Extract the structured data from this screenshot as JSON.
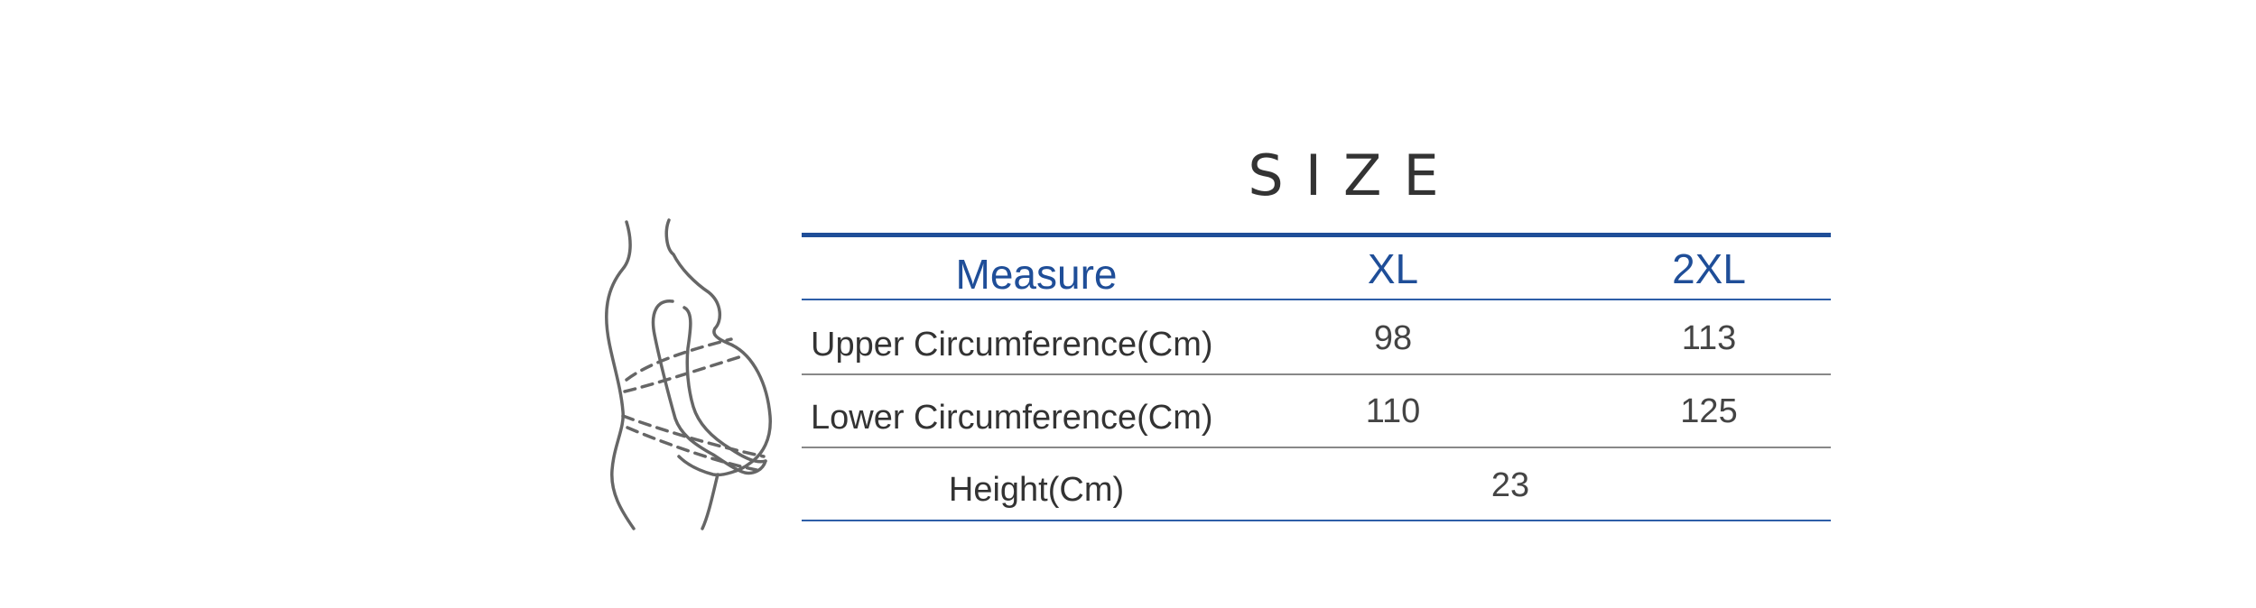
{
  "title": "SIZE",
  "figure": {
    "icon": "pregnant-woman-belly-measure-icon",
    "stroke_color": "#666666"
  },
  "colors": {
    "accent": "#1f4e98",
    "text": "#333333",
    "divider": "#888888"
  },
  "table": {
    "headers": [
      "Measure",
      "XL",
      "2XL"
    ],
    "rows": [
      {
        "label": "Upper Circumference(Cm)",
        "xl": "98",
        "xxl": "113"
      },
      {
        "label": "Lower Circumference(Cm)",
        "xl": "110",
        "xxl": "125"
      },
      {
        "label": "Height(Cm)",
        "value": "23"
      }
    ]
  }
}
